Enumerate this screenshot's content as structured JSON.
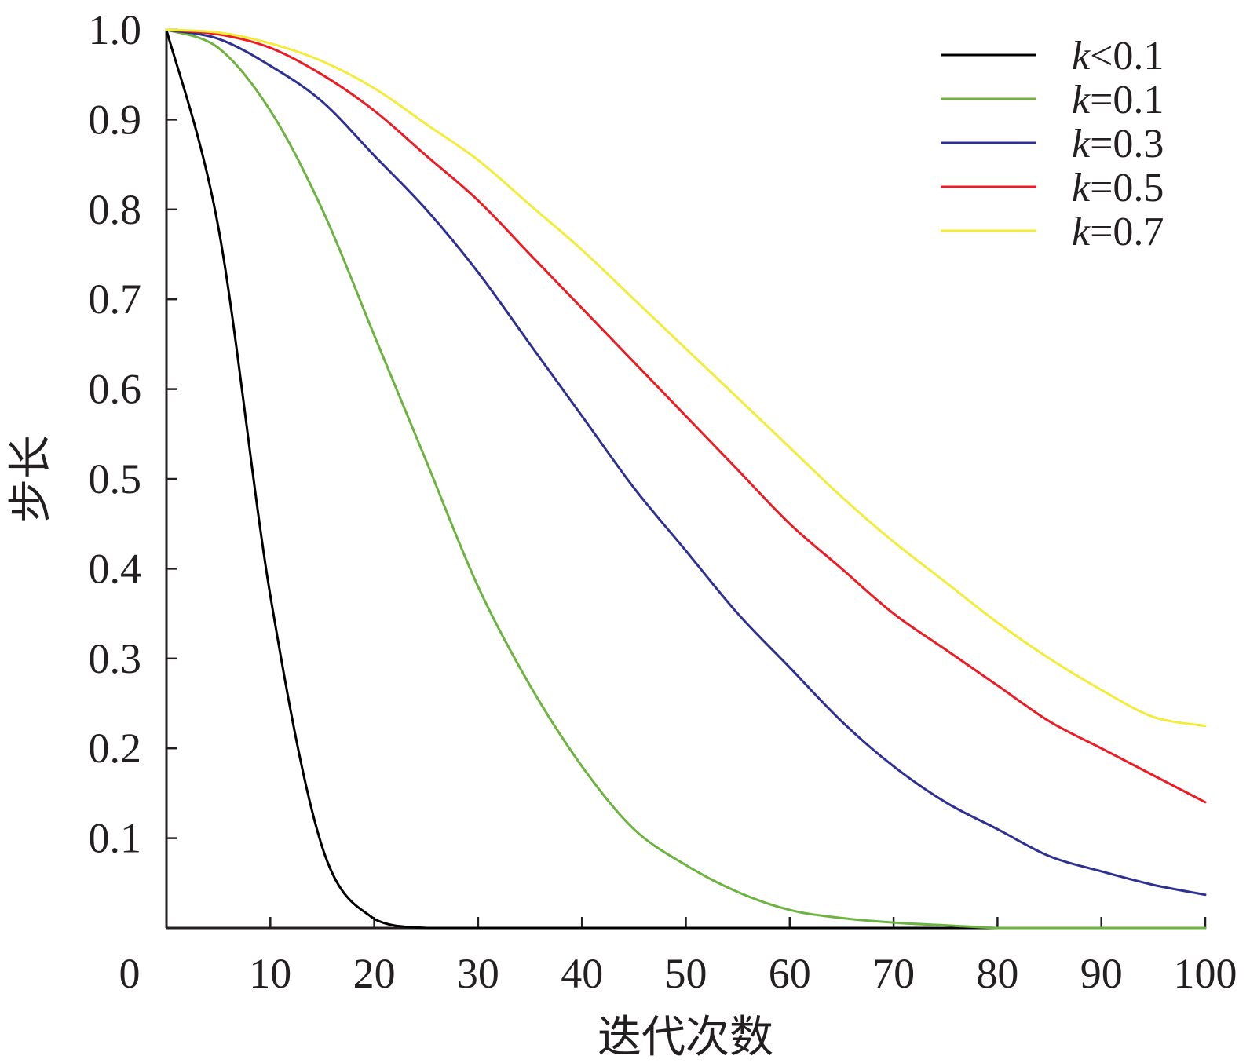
{
  "chart_data": {
    "type": "line",
    "xlabel": "迭代次数",
    "ylabel": "步长",
    "xlim": [
      0,
      100
    ],
    "ylim": [
      0,
      1.0
    ],
    "x_ticks": [
      "10",
      "20",
      "30",
      "40",
      "50",
      "60",
      "70",
      "80",
      "90",
      "100"
    ],
    "y_ticks": [
      "0.1",
      "0.2",
      "0.3",
      "0.4",
      "0.5",
      "0.6",
      "0.7",
      "0.8",
      "0.9",
      "1.0"
    ],
    "origin_label": "0",
    "grid": false,
    "legend_position": "top-right",
    "x": [
      0,
      5,
      10,
      15,
      20,
      25,
      30,
      35,
      40,
      45,
      50,
      55,
      60,
      65,
      70,
      75,
      80,
      85,
      90,
      95,
      100
    ],
    "series": [
      {
        "name": "<0.1",
        "legend_italic": "k",
        "legend_rest": "<0.1",
        "color": "#000000",
        "values": [
          1.0,
          0.78,
          0.37,
          0.09,
          0.01,
          0.0,
          0.0,
          0.0,
          0.0,
          0.0,
          0.0,
          0.0,
          0.0,
          0.0,
          0.0,
          0.0,
          0.0,
          0.0,
          0.0,
          0.0,
          0.0
        ]
      },
      {
        "name": "=0.1",
        "legend_italic": "k",
        "legend_rest": "=0.1",
        "color": "#6cb33f",
        "values": [
          1.0,
          0.98,
          0.91,
          0.8,
          0.66,
          0.52,
          0.38,
          0.27,
          0.18,
          0.11,
          0.07,
          0.04,
          0.02,
          0.011,
          0.006,
          0.003,
          0.0,
          0.0,
          0.0,
          0.0,
          0.0
        ]
      },
      {
        "name": "=0.3",
        "legend_italic": "k",
        "legend_rest": "=0.3",
        "color": "#2e3192",
        "values": [
          1.0,
          0.99,
          0.96,
          0.92,
          0.86,
          0.8,
          0.73,
          0.65,
          0.57,
          0.49,
          0.42,
          0.35,
          0.29,
          0.23,
          0.18,
          0.14,
          0.11,
          0.08,
          0.063,
          0.048,
          0.037
        ]
      },
      {
        "name": "=0.5",
        "legend_italic": "k",
        "legend_rest": "=0.5",
        "color": "#ed1c24",
        "values": [
          1.0,
          0.995,
          0.98,
          0.95,
          0.91,
          0.86,
          0.81,
          0.75,
          0.69,
          0.63,
          0.57,
          0.51,
          0.45,
          0.4,
          0.35,
          0.31,
          0.27,
          0.23,
          0.2,
          0.17,
          0.14
        ]
      },
      {
        "name": "=0.7",
        "legend_italic": "k",
        "legend_rest": "=0.7",
        "color": "#f2ec3a",
        "values": [
          1.0,
          0.997,
          0.985,
          0.965,
          0.935,
          0.895,
          0.855,
          0.805,
          0.755,
          0.7,
          0.645,
          0.59,
          0.535,
          0.48,
          0.43,
          0.385,
          0.34,
          0.3,
          0.265,
          0.235,
          0.225
        ]
      }
    ]
  }
}
